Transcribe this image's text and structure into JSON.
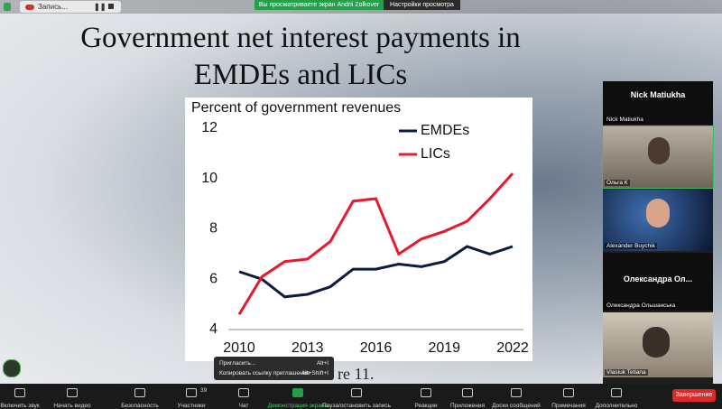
{
  "top_bar": {
    "recording": "Запись...",
    "banner": "Вы просматриваете экран Andrii Zolkover",
    "view_settings": "Настройки просмотра"
  },
  "slide": {
    "title": "Government net interest payments in EMDEs and LICs",
    "caption": "re 11."
  },
  "chart_data": {
    "type": "line",
    "ylabel": "Percent of government revenues",
    "x": [
      2010,
      2011,
      2012,
      2013,
      2014,
      2015,
      2016,
      2017,
      2018,
      2019,
      2020,
      2021,
      2022
    ],
    "series": [
      {
        "name": "EMDEs",
        "color": "#0d1a40",
        "values": [
          6.3,
          6.0,
          5.3,
          5.4,
          5.7,
          6.4,
          6.4,
          6.6,
          6.5,
          6.7,
          7.3,
          7.0,
          7.3
        ]
      },
      {
        "name": "LICs",
        "color": "#e8192c",
        "values": [
          4.6,
          6.1,
          6.7,
          6.8,
          7.5,
          9.1,
          9.2,
          7.0,
          7.6,
          7.9,
          8.3,
          9.2,
          10.2
        ]
      }
    ],
    "xlim": [
      2010,
      2022
    ],
    "xticks": [
      2010,
      2013,
      2016,
      2019,
      2022
    ],
    "ylim": [
      4,
      12
    ],
    "yticks": [
      4,
      6,
      8,
      10,
      12
    ],
    "grid": false,
    "legend": "upper right"
  },
  "participants": [
    {
      "heading": "Nick Matiukha",
      "label": "Nick Matiukha"
    },
    {
      "label": "Ольга К"
    },
    {
      "label": "Alexander Buychik"
    },
    {
      "heading": "Олександра Ол...",
      "label": "Олександра Ольшанська"
    },
    {
      "label": "Vlasiuk Tetiana"
    }
  ],
  "invite_menu": [
    {
      "label": "Пригласить...",
      "shortcut": "Alt+I"
    },
    {
      "label": "Копировать ссылку приглашения",
      "shortcut": "Alt+Shift+I"
    }
  ],
  "toolbar": {
    "items": [
      "Включить звук",
      "Начать видео",
      "Безопасность",
      "Участники",
      "Чат",
      "Демонстрация экрана",
      "Пауза/остановить запись",
      "Реакции",
      "Приложения",
      "Доски сообщений",
      "Примечания",
      "Дополнительно"
    ],
    "participants_count": "39",
    "end_button": "Завершение"
  }
}
